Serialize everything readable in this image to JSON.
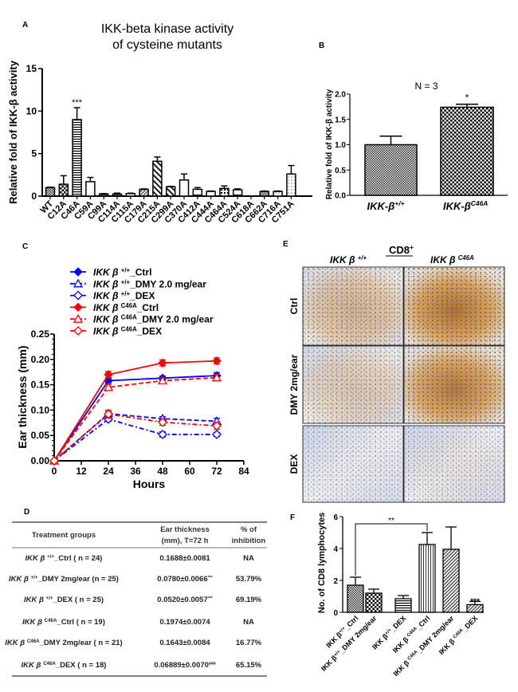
{
  "panel_letters": {
    "a": "A",
    "b": "B",
    "c": "C",
    "d": "D",
    "e": "E",
    "f": "F"
  },
  "chart_data": [
    {
      "type": "bar",
      "title": [
        "IKK-beta kinase activity",
        "of cysteine mutants"
      ],
      "ylabel": "Relative fold of IKK-β activity",
      "ylim": [
        0,
        15
      ],
      "ytick_labels": [
        "0",
        "5",
        "10",
        "15"
      ],
      "yticks": [
        0,
        5,
        10,
        15
      ],
      "categories": [
        "WT",
        "C12A",
        "C46A",
        "C59A",
        "C99A",
        "C114A",
        "C115A",
        "C179A",
        "C215A",
        "C299A",
        "C370A",
        "C412A",
        "C444A",
        "C464A",
        "C524A",
        "C618A",
        "C662A",
        "C716A",
        "C751A"
      ],
      "values": [
        1.0,
        1.4,
        9.0,
        1.7,
        0.25,
        0.25,
        0.3,
        0.8,
        4.1,
        1.1,
        1.9,
        0.8,
        0.55,
        0.9,
        0.75,
        0,
        0.55,
        0.55,
        2.6
      ],
      "errors": [
        0.05,
        1.0,
        1.4,
        0.5,
        0.05,
        0.1,
        0.05,
        0.05,
        0.5,
        0.05,
        0.7,
        0.2,
        0.05,
        0.3,
        0.1,
        0,
        0.05,
        0.05,
        1.0
      ],
      "patterns": [
        "checkfine",
        "checkbig",
        "hlines",
        "white",
        "dense",
        "dense",
        "white",
        "diag",
        "diagbig",
        "diagbig",
        "white",
        "hbar",
        "white",
        "star",
        "hbar",
        "white",
        "checkfine",
        "dots",
        "dots"
      ],
      "annotations": [
        {
          "category": "C46A",
          "text": "***"
        }
      ],
      "grid": false
    },
    {
      "type": "bar",
      "title": "N = 3",
      "ylabel": "Relative fold of IKK-β activity",
      "ylim": [
        0,
        2.0
      ],
      "yticks": [
        0,
        0.5,
        1.0,
        1.5,
        2.0
      ],
      "ytick_labels": [
        "0.0",
        "0.5",
        "1.0",
        "1.5",
        "2.0"
      ],
      "categories": [
        {
          "base": "IKK-β",
          "sup": "+/+"
        },
        {
          "base": "IKK-β",
          "sup": "C46A"
        }
      ],
      "values": [
        1.0,
        1.74
      ],
      "errors": [
        0.17,
        0.06
      ],
      "patterns": [
        "checkfine",
        "checkbig"
      ],
      "annotations": [
        {
          "category": 1,
          "text": "*"
        }
      ],
      "grid": false
    },
    {
      "type": "line",
      "xlabel": "Hours",
      "ylabel": "Ear thickness (mm)",
      "xlim": [
        0,
        84
      ],
      "ylim": [
        0,
        0.25
      ],
      "xticks": [
        0,
        12,
        24,
        36,
        48,
        60,
        72,
        84
      ],
      "xtick_labels": [
        "0",
        "12",
        "24",
        "36",
        "48",
        "60",
        "72",
        "84"
      ],
      "yticks": [
        0,
        0.05,
        0.1,
        0.15,
        0.2,
        0.25
      ],
      "ytick_labels": [
        "0.00",
        "0.05",
        "0.10",
        "0.15",
        "0.20",
        "0.25"
      ],
      "x": [
        0,
        24,
        48,
        72
      ],
      "legend_position": "top-left",
      "grid": false,
      "series": [
        {
          "name": {
            "base": "IKK β ",
            "sup": "+/+",
            "suffix": "_Ctrl"
          },
          "values": [
            0,
            0.158,
            0.163,
            0.168
          ],
          "errors": [
            0,
            0.005,
            0.004,
            0.006
          ],
          "color": "#0000ff",
          "line": "solid",
          "marker": "filled-diamond"
        },
        {
          "name": {
            "base": "IKK β ",
            "sup": "+/+",
            "suffix": "_DMY 2.0 mg/ear"
          },
          "values": [
            0,
            0.093,
            0.083,
            0.078
          ],
          "errors": [
            0,
            0.004,
            0.004,
            0.006
          ],
          "color": "#0000ff",
          "line": "dashed",
          "marker": "open-triangle"
        },
        {
          "name": {
            "base": "IKK β ",
            "sup": "+/+",
            "suffix": "_DEX"
          },
          "values": [
            0,
            0.082,
            0.052,
            0.052
          ],
          "errors": [
            0,
            0.004,
            0.005,
            0.004
          ],
          "color": "#0000ff",
          "line": "dash-dot",
          "marker": "open-diamond"
        },
        {
          "name": {
            "base": "IKK β ",
            "sup": "C46A",
            "suffix": "_Ctrl"
          },
          "values": [
            0,
            0.17,
            0.193,
            0.197
          ],
          "errors": [
            0,
            0.006,
            0.006,
            0.006
          ],
          "color": "#ff0000",
          "line": "solid",
          "marker": "filled-diamond"
        },
        {
          "name": {
            "base": "IKK β ",
            "sup": "C46A",
            "suffix": "_DMY 2.0 mg/ear"
          },
          "values": [
            0,
            0.145,
            0.158,
            0.164
          ],
          "errors": [
            0,
            0.005,
            0.005,
            0.006
          ],
          "color": "#ff0000",
          "line": "dashed",
          "marker": "open-triangle"
        },
        {
          "name": {
            "base": "IKK β ",
            "sup": "C46A",
            "suffix": "_DEX"
          },
          "values": [
            0,
            0.092,
            0.076,
            0.069
          ],
          "errors": [
            0,
            0.008,
            0.006,
            0.007
          ],
          "color": "#ff0000",
          "line": "dash-dot",
          "marker": "open-diamond"
        }
      ]
    },
    {
      "type": "bar",
      "ylabel": "No. of CD8 lymphocytes",
      "ylim": [
        0,
        6
      ],
      "yticks": [
        0,
        2,
        4,
        6
      ],
      "ytick_labels": [
        "0",
        "2",
        "4",
        "6"
      ],
      "categories": [
        {
          "base": "IKK β",
          "sup": "+/+",
          "suffix": "_Ctrl"
        },
        {
          "base": "IKK β",
          "sup": "+/+",
          "suffix": "_DMY 2mg/ear"
        },
        {
          "base": "IKK β",
          "sup": "+/+",
          "suffix": "_DEX"
        },
        {
          "base": "IKK β ",
          "sup": "C46A",
          "suffix": "_Ctrl"
        },
        {
          "base": "IKK β ",
          "sup": "C46A",
          "suffix": "_DMY 2mg/ear"
        },
        {
          "base": "IKK β ",
          "sup": "C46A",
          "suffix": "_DEX"
        }
      ],
      "values": [
        1.7,
        1.2,
        0.85,
        4.25,
        3.95,
        0.48
      ],
      "errors": [
        0.5,
        0.25,
        0.2,
        0.75,
        1.4,
        0.2
      ],
      "patterns": [
        "checkfine",
        "checkbig",
        "hlines",
        "vlines",
        "diag",
        "diag"
      ],
      "annotations": [
        {
          "category": 5,
          "text": "***"
        },
        {
          "from": 0,
          "to": 3,
          "text": "**"
        }
      ],
      "grid": false
    }
  ],
  "table": {
    "headers": [
      [
        "Treatment groups"
      ],
      [
        "Ear thickness",
        "(mm), T=72 h"
      ],
      [
        "% of",
        "inhibition"
      ]
    ],
    "rows": [
      {
        "group": {
          "base": "IKK β ",
          "sup": "+/+",
          "suffix": "_Ctrl ( n = 24)"
        },
        "thickness": "0.1688±0.0081",
        "sig": "",
        "inhibition": "NA"
      },
      {
        "group": {
          "base": "IKK β ",
          "sup": "+/+",
          "suffix": "_DMY 2mg/ear (n = 25)"
        },
        "thickness": "0.0780±0.0066",
        "sig": "***",
        "inhibition": "53.79%"
      },
      {
        "group": {
          "base": "IKK β ",
          "sup": "+/+",
          "suffix": "_DEX ( n = 25)"
        },
        "thickness": "0.0520±0.0057",
        "sig": "***",
        "inhibition": "69.19%"
      },
      {
        "group": {
          "base": "IKK β ",
          "sup": "C46A",
          "suffix": "_Ctrl ( n = 19)"
        },
        "thickness": "0.1974±0.0074",
        "sig": "",
        "inhibition": "NA"
      },
      {
        "group": {
          "base": "IKK β ",
          "sup": "C46A",
          "suffix": "_DMY 2mg/ear   ( n = 21)"
        },
        "thickness": "0.1643±0.0084",
        "sig": "",
        "inhibition": "16.77%"
      },
      {
        "group": {
          "base": "IKK β ",
          "sup": "C46A",
          "suffix": "_DEX ( n = 18)"
        },
        "thickness": "0.06889±0.0070",
        "sig": "###",
        "inhibition": "65.15%"
      }
    ]
  },
  "micrographs": {
    "title": {
      "base": "CD8",
      "sup": "+"
    },
    "columns": [
      {
        "base": "IKK β ",
        "sup": "+/+"
      },
      {
        "base": "IKK β ",
        "sup": "C46A"
      }
    ],
    "rows": [
      "Ctrl",
      "DMY 2mg/ear",
      "DEX"
    ],
    "stain_intensity": [
      [
        0.45,
        0.9
      ],
      [
        0.3,
        0.85
      ],
      [
        0.05,
        0.1
      ]
    ],
    "colors": {
      "stain": "#b8731e",
      "counterstain": "#5b78c8"
    }
  }
}
